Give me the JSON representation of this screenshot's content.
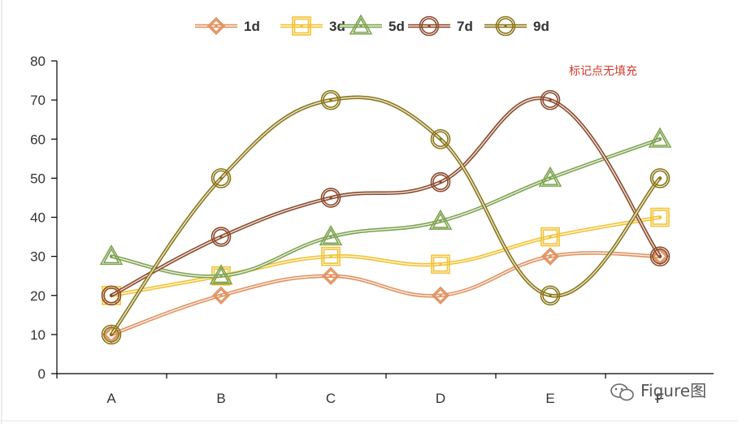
{
  "chart_data": {
    "type": "line",
    "smooth": true,
    "marker_fill": "none",
    "categories": [
      "A",
      "B",
      "C",
      "D",
      "E",
      "F"
    ],
    "ylim": [
      0,
      80
    ],
    "yticks": [
      0,
      10,
      20,
      30,
      40,
      50,
      60,
      70,
      80
    ],
    "grid": false,
    "legend_position": "top",
    "series": [
      {
        "name": "1d",
        "marker": "diamond",
        "color": "#e0915f",
        "values": [
          10,
          20,
          25,
          20,
          30,
          30
        ]
      },
      {
        "name": "3d",
        "marker": "square",
        "color": "#f1c232",
        "values": [
          20,
          25,
          30,
          28,
          35,
          40
        ]
      },
      {
        "name": "5d",
        "marker": "triangle",
        "color": "#7da34f",
        "values": [
          30,
          25,
          35,
          39,
          50,
          60
        ]
      },
      {
        "name": "7d",
        "marker": "circle",
        "color": "#8b4a2b",
        "values": [
          20,
          35,
          45,
          49,
          70,
          30
        ]
      },
      {
        "name": "9d",
        "marker": "circle",
        "color": "#8a7516",
        "values": [
          10,
          50,
          70,
          60,
          20,
          50
        ]
      }
    ],
    "annotation": "标记点无填充"
  },
  "watermark": {
    "text": "Figure图",
    "icon": "wechat-icon"
  }
}
